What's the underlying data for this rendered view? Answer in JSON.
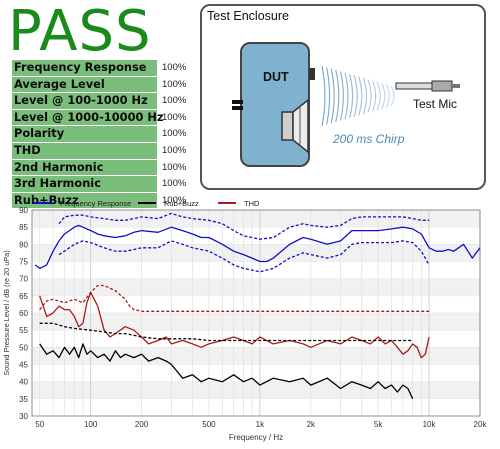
{
  "verdict": "PASS",
  "results": [
    {
      "label": "Frequency Response",
      "value": "100%"
    },
    {
      "label": "Average Level",
      "value": "100%"
    },
    {
      "label": "Level @ 100-1000 Hz",
      "value": "100%"
    },
    {
      "label": "Level @ 1000-10000 Hz",
      "value": "100%"
    },
    {
      "label": "Polarity",
      "value": "100%"
    },
    {
      "label": "THD",
      "value": "100%"
    },
    {
      "label": "2nd Harmonic",
      "value": "100%"
    },
    {
      "label": "3rd Harmonic",
      "value": "100%"
    },
    {
      "label": "Rub+Buzz",
      "value": "100%"
    }
  ],
  "enclosure": {
    "title": "Test Enclosure",
    "dut_label": "DUT",
    "mic_label": "Test Mic",
    "chirp_label": "200 ms Chirp"
  },
  "colors": {
    "pass": "#1a8a1a",
    "label_bg": "#7bbd7a",
    "fr": "#1010cc",
    "rb": "#000000",
    "thd": "#aa1a1a",
    "dut": "#7fb2cf"
  },
  "chart_data": {
    "type": "line",
    "xscale": "log",
    "xlim": [
      45,
      20000
    ],
    "ylim": [
      30,
      90
    ],
    "xlabel": "Frequency / Hz",
    "ylabel": "Sound Pressure Level / dB (re 20 uPa)",
    "xticks": [
      {
        "v": 50,
        "t": "50"
      },
      {
        "v": 100,
        "t": "100"
      },
      {
        "v": 200,
        "t": "200"
      },
      {
        "v": 500,
        "t": "500"
      },
      {
        "v": 1000,
        "t": "1k"
      },
      {
        "v": 2000,
        "t": "2k"
      },
      {
        "v": 5000,
        "t": "5k"
      },
      {
        "v": 10000,
        "t": "10k"
      },
      {
        "v": 20000,
        "t": "20k"
      }
    ],
    "yticks": [
      30,
      35,
      40,
      45,
      50,
      55,
      60,
      65,
      70,
      75,
      80,
      85,
      90
    ],
    "legend": [
      {
        "name": "Frequency Response",
        "color": "#1010cc"
      },
      {
        "name": "Rub+Buzz",
        "color": "#000000"
      },
      {
        "name": "THD",
        "color": "#aa1a1a"
      }
    ],
    "series": [
      {
        "name": "Frequency Response",
        "color": "#1010cc",
        "style": "solid",
        "x": [
          47,
          50,
          55,
          60,
          65,
          70,
          75,
          80,
          85,
          90,
          100,
          110,
          120,
          140,
          160,
          180,
          200,
          250,
          300,
          350,
          400,
          450,
          500,
          600,
          700,
          800,
          900,
          1000,
          1100,
          1200,
          1500,
          1800,
          2000,
          2500,
          3000,
          3500,
          4000,
          5000,
          6000,
          7000,
          8000,
          9000,
          10000,
          11000,
          12000,
          13000,
          14000,
          16000,
          18000,
          20000
        ],
        "y": [
          74,
          73,
          74,
          78,
          81,
          83,
          84,
          85,
          85.5,
          85,
          84,
          83,
          82.5,
          82,
          82.5,
          83.5,
          84,
          83.5,
          85,
          84,
          83,
          82,
          82,
          80,
          78,
          77,
          76,
          75,
          75,
          76,
          80,
          82,
          81.5,
          80,
          81,
          84,
          84,
          84,
          84.5,
          85,
          84.5,
          83,
          79,
          78,
          78,
          78.5,
          78,
          80,
          76,
          79
        ]
      },
      {
        "name": "Frequency Response upper limit",
        "color": "#1010cc",
        "style": "dashed",
        "x": [
          65,
          70,
          80,
          90,
          100,
          120,
          140,
          160,
          180,
          200,
          250,
          300,
          350,
          400,
          500,
          600,
          700,
          800,
          900,
          1000,
          1200,
          1500,
          1800,
          2000,
          2500,
          3000,
          3500,
          4000,
          5000,
          6000,
          7000,
          8000,
          9000,
          10000
        ],
        "y": [
          86,
          88,
          88.5,
          88.5,
          88,
          87.5,
          87,
          87,
          87.5,
          88,
          87.5,
          89,
          88,
          87.5,
          87,
          86,
          84,
          82.5,
          82,
          81.5,
          82,
          85,
          86,
          85.5,
          85,
          85.5,
          87.5,
          88,
          88,
          88,
          88,
          87.5,
          87,
          87
        ]
      },
      {
        "name": "Frequency Response lower limit",
        "color": "#1010cc",
        "style": "dashed",
        "x": [
          65,
          70,
          80,
          90,
          100,
          120,
          140,
          160,
          180,
          200,
          250,
          300,
          350,
          400,
          500,
          600,
          700,
          800,
          900,
          1000,
          1200,
          1500,
          1800,
          2000,
          2500,
          3000,
          3500,
          4000,
          5000,
          6000,
          7000,
          8000,
          9000,
          10000
        ],
        "y": [
          77,
          78,
          80,
          81,
          80.5,
          79,
          78,
          78,
          78.5,
          79,
          79,
          81,
          80,
          79,
          78,
          76,
          74,
          73,
          72.5,
          72,
          73,
          76,
          77.5,
          77,
          76,
          77,
          80,
          80.5,
          80.5,
          80.5,
          81,
          80.5,
          78,
          74
        ]
      },
      {
        "name": "THD",
        "color": "#aa1a1a",
        "style": "solid",
        "x": [
          50,
          55,
          60,
          65,
          70,
          75,
          80,
          85,
          90,
          95,
          100,
          110,
          120,
          130,
          140,
          160,
          180,
          200,
          220,
          250,
          280,
          300,
          350,
          400,
          450,
          500,
          600,
          700,
          800,
          900,
          1000,
          1200,
          1500,
          1800,
          2000,
          2500,
          3000,
          3500,
          4000,
          4500,
          5000,
          5500,
          6000,
          6500,
          7000,
          7500,
          8000,
          8500,
          9000,
          9500,
          10000
        ],
        "y": [
          65,
          59,
          60,
          62,
          61,
          61,
          59,
          56,
          57,
          63,
          66,
          62,
          55,
          53,
          54,
          56,
          55,
          53,
          51,
          52,
          53,
          51,
          52,
          51,
          50,
          51,
          52,
          53,
          52,
          51,
          53,
          51,
          52,
          51,
          50,
          52,
          51,
          53,
          52,
          51,
          53,
          51,
          52,
          50,
          48,
          49,
          51,
          50,
          47,
          48,
          53
        ]
      },
      {
        "name": "THD limit",
        "color": "#aa1a1a",
        "style": "dashed",
        "x": [
          50,
          55,
          60,
          70,
          80,
          90,
          100,
          110,
          120,
          140,
          160,
          170,
          180,
          200,
          10000
        ],
        "y": [
          61,
          63.5,
          64,
          63,
          64,
          63,
          66,
          68,
          68,
          66.5,
          64,
          62,
          61,
          60.5,
          60.5
        ]
      },
      {
        "name": "Rub+Buzz",
        "color": "#000000",
        "style": "solid",
        "x": [
          50,
          55,
          60,
          65,
          70,
          75,
          80,
          85,
          90,
          95,
          100,
          110,
          120,
          130,
          140,
          150,
          160,
          180,
          200,
          220,
          250,
          280,
          300,
          350,
          400,
          450,
          500,
          600,
          700,
          800,
          900,
          1000,
          1200,
          1500,
          1800,
          2000,
          2500,
          3000,
          3500,
          4000,
          4500,
          5000,
          5500,
          6000,
          6500,
          7000,
          7500,
          8000
        ],
        "y": [
          51,
          48,
          49,
          47,
          50,
          48,
          50,
          47,
          51,
          48,
          49,
          47,
          48,
          46,
          49,
          47,
          48,
          47,
          48,
          46,
          47,
          46,
          45,
          41,
          42,
          40,
          41,
          40,
          42,
          40,
          41,
          39,
          41,
          40,
          41,
          39,
          41,
          38,
          40,
          39,
          38,
          40,
          38,
          39,
          37,
          39,
          38,
          35
        ]
      },
      {
        "name": "Rub+Buzz limit",
        "color": "#000000",
        "style": "dashed",
        "x": [
          50,
          55,
          60,
          70,
          80,
          100,
          120,
          140,
          160,
          180,
          200,
          250,
          300,
          400,
          500,
          600,
          800,
          1000,
          2000,
          5000,
          8000
        ],
        "y": [
          57,
          57,
          57,
          56,
          55.5,
          55,
          54.5,
          54,
          54,
          53.5,
          53,
          52.5,
          52.5,
          52.5,
          52,
          52,
          52,
          52,
          52,
          52,
          52
        ]
      }
    ]
  }
}
